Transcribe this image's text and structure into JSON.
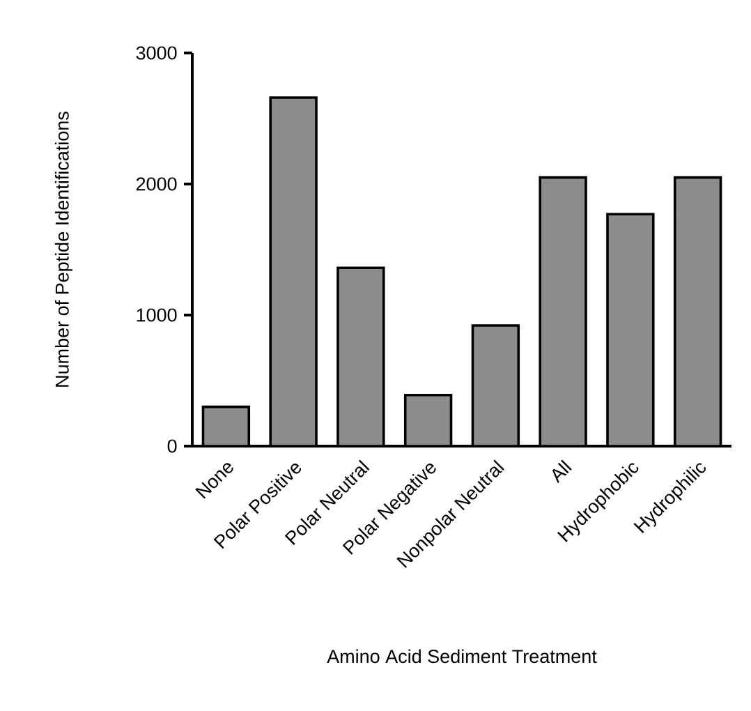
{
  "chart_data": {
    "type": "bar",
    "xlabel": "Amino Acid Sediment Treatment",
    "ylabel": "Number of Peptide Identifications",
    "categories": [
      "None",
      "Polar Positive",
      "Polar Neutral",
      "Polar Negative",
      "Nonpolar Neutral",
      "All",
      "Hydrophobic",
      "Hydrophilic"
    ],
    "values": [
      300,
      2660,
      1360,
      390,
      920,
      2050,
      1770,
      2050
    ],
    "color": "#8c8c8c",
    "ylim": [
      0,
      3000
    ],
    "yticks": [
      0,
      1000,
      2000,
      3000
    ],
    "grid": false
  }
}
